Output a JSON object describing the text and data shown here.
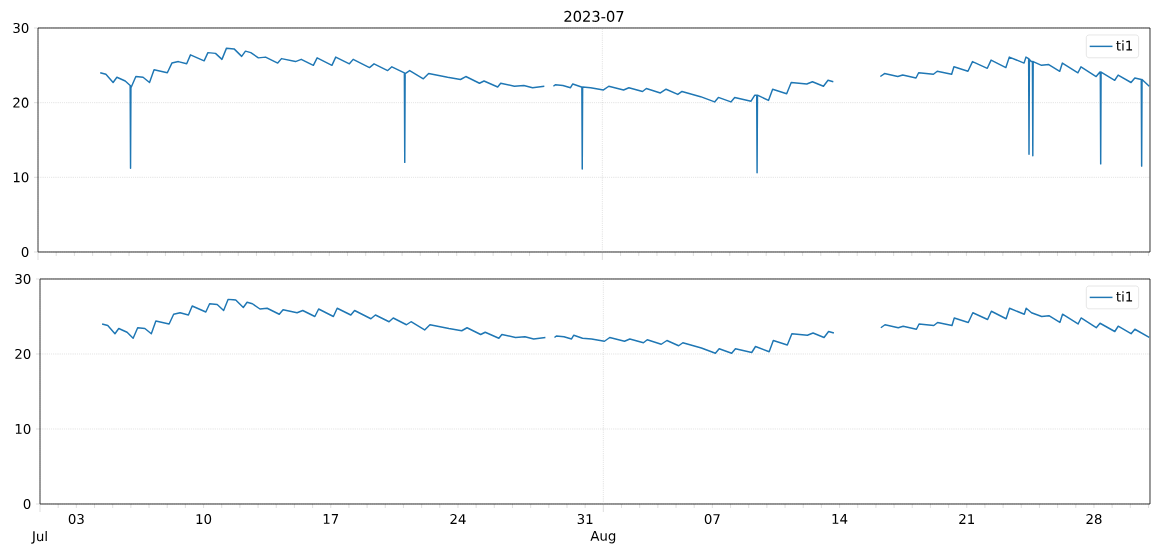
{
  "chart_data": [
    {
      "type": "line",
      "title": "2023-07",
      "xlim": [
        "2023-07-01",
        "2023-08-31T02:00"
      ],
      "ylim": [
        0,
        30
      ],
      "yticks": [
        0,
        10,
        20,
        30
      ],
      "grid": true,
      "legend": "top right",
      "tick_labels": "y",
      "xticks": [
        {
          "value": "2023-07-01",
          "label": null
        },
        {
          "value": "2023-07-02",
          "label": null
        },
        {
          "value": "2023-07-03",
          "label": null
        },
        {
          "value": "2023-07-04",
          "label": null
        },
        {
          "value": "2023-07-05",
          "label": null
        },
        {
          "value": "2023-07-06",
          "label": null
        },
        {
          "value": "2023-07-07",
          "label": null
        },
        {
          "value": "2023-07-08",
          "label": null
        },
        {
          "value": "2023-07-09",
          "label": null
        },
        {
          "value": "2023-07-10",
          "label": null
        },
        {
          "value": "2023-07-11",
          "label": null
        },
        {
          "value": "2023-07-12",
          "label": null
        },
        {
          "value": "2023-07-13",
          "label": null
        },
        {
          "value": "2023-07-14",
          "label": null
        },
        {
          "value": "2023-07-15",
          "label": null
        },
        {
          "value": "2023-07-16",
          "label": null
        },
        {
          "value": "2023-07-17",
          "label": null
        },
        {
          "value": "2023-07-18",
          "label": null
        },
        {
          "value": "2023-07-19",
          "label": null
        },
        {
          "value": "2023-07-20",
          "label": null
        },
        {
          "value": "2023-07-21",
          "label": null
        },
        {
          "value": "2023-07-22",
          "label": null
        },
        {
          "value": "2023-07-23",
          "label": null
        },
        {
          "value": "2023-07-24",
          "label": null
        },
        {
          "value": "2023-07-25",
          "label": null
        },
        {
          "value": "2023-07-26",
          "label": null
        },
        {
          "value": "2023-07-27",
          "label": null
        },
        {
          "value": "2023-07-28",
          "label": null
        },
        {
          "value": "2023-07-29",
          "label": null
        },
        {
          "value": "2023-07-30",
          "label": null
        },
        {
          "value": "2023-07-31",
          "label": null
        },
        {
          "value": "2023-08-01",
          "label": null
        },
        {
          "value": "2023-08-02",
          "label": null
        },
        {
          "value": "2023-08-03",
          "label": null
        },
        {
          "value": "2023-08-04",
          "label": null
        },
        {
          "value": "2023-08-05",
          "label": null
        },
        {
          "value": "2023-08-06",
          "label": null
        },
        {
          "value": "2023-08-07",
          "label": null
        },
        {
          "value": "2023-08-08",
          "label": null
        },
        {
          "value": "2023-08-09",
          "label": null
        },
        {
          "value": "2023-08-10",
          "label": null
        },
        {
          "value": "2023-08-11",
          "label": null
        },
        {
          "value": "2023-08-12",
          "label": null
        },
        {
          "value": "2023-08-13",
          "label": null
        },
        {
          "value": "2023-08-14",
          "label": null
        },
        {
          "value": "2023-08-15",
          "label": null
        },
        {
          "value": "2023-08-16",
          "label": null
        },
        {
          "value": "2023-08-17",
          "label": null
        },
        {
          "value": "2023-08-18",
          "label": null
        },
        {
          "value": "2023-08-19",
          "label": null
        },
        {
          "value": "2023-08-20",
          "label": null
        },
        {
          "value": "2023-08-21",
          "label": null
        },
        {
          "value": "2023-08-22",
          "label": null
        },
        {
          "value": "2023-08-23",
          "label": null
        },
        {
          "value": "2023-08-24",
          "label": null
        },
        {
          "value": "2023-08-25",
          "label": null
        },
        {
          "value": "2023-08-26",
          "label": null
        },
        {
          "value": "2023-08-27",
          "label": null
        },
        {
          "value": "2023-08-28",
          "label": null
        },
        {
          "value": "2023-08-29",
          "label": null
        },
        {
          "value": "2023-08-30",
          "label": null
        },
        {
          "value": "2023-08-31",
          "label": null
        }
      ],
      "x": [
        "2023-07-04T10:00",
        "2023-07-04T17:30",
        "2023-07-05T03:00",
        "2023-07-05T08:00",
        "2023-07-05T19:00",
        "2023-07-06T01:30",
        "2023-07-06T02:00",
        "2023-07-06T02:30",
        "2023-07-06T03:00",
        "2023-07-06T09:00",
        "2023-07-06T18:30",
        "2023-07-07T03:00",
        "2023-07-07T09:00",
        "2023-07-08T02:30",
        "2023-07-08T08:30",
        "2023-07-08T17:00",
        "2023-07-09T04:00",
        "2023-07-09T09:00",
        "2023-07-10T03:00",
        "2023-07-10T08:00",
        "2023-07-10T18:00",
        "2023-07-11T02:30",
        "2023-07-11T08:30",
        "2023-07-11T18:30",
        "2023-07-12T04:30",
        "2023-07-12T09:30",
        "2023-07-12T16:30",
        "2023-07-13T02:30",
        "2023-07-13T12:00",
        "2023-07-14T04:00",
        "2023-07-14T09:00",
        "2023-07-15T03:30",
        "2023-07-15T11:00",
        "2023-07-16T03:00",
        "2023-07-16T08:00",
        "2023-07-17T03:30",
        "2023-07-17T08:30",
        "2023-07-18T02:30",
        "2023-07-18T07:30",
        "2023-07-19T05:00",
        "2023-07-19T11:00",
        "2023-07-20T05:00",
        "2023-07-20T10:30",
        "2023-07-21T03:00",
        "2023-07-21T03:30",
        "2023-07-21T04:00",
        "2023-07-21T10:00",
        "2023-07-22T04:00",
        "2023-07-22T11:00",
        "2023-07-23T12:00",
        "2023-07-24T05:00",
        "2023-07-24T12:00",
        "2023-07-25T06:00",
        "2023-07-25T12:00",
        "2023-07-26T06:00",
        "2023-07-26T10:00",
        "2023-07-27T04:00",
        "2023-07-27T16:30",
        "2023-07-28T04:00",
        "2023-07-28T19:30",
        "2023-07-29T00:00",
        "2023-07-29T07:30",
        "2023-07-29T10:00",
        "2023-07-29T20:00",
        "2023-07-30T06:00",
        "2023-07-30T09:00",
        "2023-07-30T20:30",
        "2023-07-30T21:00",
        "2023-07-30T21:30",
        "2023-07-30T22:00",
        "2023-07-31T08:30",
        "2023-08-01T01:30",
        "2023-08-01T08:30",
        "2023-08-02T04:00",
        "2023-08-02T11:00",
        "2023-08-03T05:00",
        "2023-08-03T10:00",
        "2023-08-04T04:30",
        "2023-08-04T12:00",
        "2023-08-05T03:30",
        "2023-08-05T09:00",
        "2023-08-06T09:30",
        "2023-08-07T04:00",
        "2023-08-07T09:00",
        "2023-08-08T01:30",
        "2023-08-08T06:30",
        "2023-08-09T04:00",
        "2023-08-09T09:00",
        "2023-08-09T11:30",
        "2023-08-09T12:00",
        "2023-08-09T12:30",
        "2023-08-10T03:00",
        "2023-08-10T08:30",
        "2023-08-11T03:00",
        "2023-08-11T09:00",
        "2023-08-12T05:30",
        "2023-08-12T13:00",
        "2023-08-13T03:30",
        "2023-08-13T09:30",
        "2023-08-13T16:30",
        "2023-08-15T00:00",
        "2023-08-16T06:30",
        "2023-08-16T12:00",
        "2023-08-17T05:30",
        "2023-08-17T12:00",
        "2023-08-18T05:30",
        "2023-08-18T09:00",
        "2023-08-19T04:30",
        "2023-08-19T09:30",
        "2023-08-20T04:30",
        "2023-08-20T07:30",
        "2023-08-21T02:00",
        "2023-08-21T08:00",
        "2023-08-22T03:30",
        "2023-08-22T08:30",
        "2023-08-23T04:00",
        "2023-08-23T08:30",
        "2023-08-24T04:00",
        "2023-08-24T06:30",
        "2023-08-24T10:00",
        "2023-08-24T10:30",
        "2023-08-24T11:00",
        "2023-08-24T13:30",
        "2023-08-24T15:00",
        "2023-08-24T15:30",
        "2023-08-24T16:00",
        "2023-08-25T03:00",
        "2023-08-25T12:30",
        "2023-08-26T03:00",
        "2023-08-26T06:30",
        "2023-08-27T03:00",
        "2023-08-27T07:00",
        "2023-08-28T03:00",
        "2023-08-28T08:00",
        "2023-08-28T08:30",
        "2023-08-28T09:00",
        "2023-08-28T09:30",
        "2023-08-29T03:30",
        "2023-08-29T08:00",
        "2023-08-30T01:00",
        "2023-08-30T06:00",
        "2023-08-30T14:30",
        "2023-08-30T15:00",
        "2023-08-30T15:30",
        "2023-08-31T01:00"
      ],
      "series": [
        {
          "name": "ti1",
          "color": "#1f77b4",
          "values": [
            24.0,
            23.8,
            22.7,
            23.4,
            22.9,
            22.3,
            11.2,
            22.2,
            22.1,
            23.5,
            23.4,
            22.7,
            24.4,
            24.0,
            25.3,
            25.5,
            25.2,
            26.4,
            25.6,
            26.7,
            26.6,
            25.8,
            27.3,
            27.2,
            26.2,
            26.9,
            26.7,
            26.0,
            26.1,
            25.3,
            25.9,
            25.5,
            25.8,
            25.0,
            26.0,
            25.0,
            26.1,
            25.2,
            25.8,
            24.7,
            25.2,
            24.3,
            24.8,
            24.0,
            12.0,
            23.9,
            24.3,
            23.2,
            23.9,
            23.4,
            23.1,
            23.5,
            22.6,
            22.9,
            22.1,
            22.6,
            22.2,
            22.3,
            22.0,
            22.2,
            null,
            22.2,
            22.4,
            22.3,
            22.0,
            22.5,
            22.1,
            22.1,
            11.1,
            22.1,
            22.0,
            21.7,
            22.2,
            21.7,
            22.0,
            21.5,
            21.9,
            21.3,
            21.8,
            21.1,
            21.5,
            20.8,
            20.1,
            20.7,
            20.1,
            20.7,
            20.2,
            21.0,
            21.0,
            10.6,
            21.0,
            20.3,
            21.8,
            21.2,
            22.7,
            22.5,
            22.8,
            22.2,
            23.0,
            22.8,
            null,
            23.5,
            23.9,
            23.5,
            23.7,
            23.3,
            24.0,
            23.8,
            24.2,
            23.8,
            24.8,
            24.2,
            25.5,
            24.6,
            25.7,
            24.7,
            26.1,
            25.3,
            26.1,
            25.9,
            13.1,
            25.8,
            25.5,
            25.5,
            12.9,
            25.5,
            25.0,
            25.1,
            24.2,
            25.3,
            24.0,
            24.8,
            23.5,
            24.1,
            24.1,
            11.8,
            24.1,
            23.0,
            23.7,
            22.7,
            23.3,
            23.1,
            11.5,
            23.1,
            22.2
          ]
        }
      ]
    },
    {
      "type": "line",
      "xlim": [
        "2023-07-01",
        "2023-08-31T02:00"
      ],
      "ylim": [
        0,
        30
      ],
      "yticks": [
        0,
        10,
        20,
        30
      ],
      "grid": true,
      "legend": "top right",
      "annotations": [
        "Jul",
        "Aug"
      ],
      "xticks": [
        {
          "value": "2023-07-01",
          "label": null
        },
        {
          "value": "2023-07-02",
          "label": null
        },
        {
          "value": "2023-07-03",
          "label": "03"
        },
        {
          "value": "2023-07-04",
          "label": null
        },
        {
          "value": "2023-07-05",
          "label": null
        },
        {
          "value": "2023-07-06",
          "label": null
        },
        {
          "value": "2023-07-07",
          "label": null
        },
        {
          "value": "2023-07-08",
          "label": null
        },
        {
          "value": "2023-07-09",
          "label": null
        },
        {
          "value": "2023-07-10",
          "label": "10"
        },
        {
          "value": "2023-07-11",
          "label": null
        },
        {
          "value": "2023-07-12",
          "label": null
        },
        {
          "value": "2023-07-13",
          "label": null
        },
        {
          "value": "2023-07-14",
          "label": null
        },
        {
          "value": "2023-07-15",
          "label": null
        },
        {
          "value": "2023-07-16",
          "label": null
        },
        {
          "value": "2023-07-17",
          "label": "17"
        },
        {
          "value": "2023-07-18",
          "label": null
        },
        {
          "value": "2023-07-19",
          "label": null
        },
        {
          "value": "2023-07-20",
          "label": null
        },
        {
          "value": "2023-07-21",
          "label": null
        },
        {
          "value": "2023-07-22",
          "label": null
        },
        {
          "value": "2023-07-23",
          "label": null
        },
        {
          "value": "2023-07-24",
          "label": "24"
        },
        {
          "value": "2023-07-25",
          "label": null
        },
        {
          "value": "2023-07-26",
          "label": null
        },
        {
          "value": "2023-07-27",
          "label": null
        },
        {
          "value": "2023-07-28",
          "label": null
        },
        {
          "value": "2023-07-29",
          "label": null
        },
        {
          "value": "2023-07-30",
          "label": null
        },
        {
          "value": "2023-07-31",
          "label": "31"
        },
        {
          "value": "2023-08-01",
          "label": null
        },
        {
          "value": "2023-08-02",
          "label": null
        },
        {
          "value": "2023-08-03",
          "label": null
        },
        {
          "value": "2023-08-04",
          "label": null
        },
        {
          "value": "2023-08-05",
          "label": null
        },
        {
          "value": "2023-08-06",
          "label": null
        },
        {
          "value": "2023-08-07",
          "label": "07"
        },
        {
          "value": "2023-08-08",
          "label": null
        },
        {
          "value": "2023-08-09",
          "label": null
        },
        {
          "value": "2023-08-10",
          "label": null
        },
        {
          "value": "2023-08-11",
          "label": null
        },
        {
          "value": "2023-08-12",
          "label": null
        },
        {
          "value": "2023-08-13",
          "label": null
        },
        {
          "value": "2023-08-14",
          "label": "14"
        },
        {
          "value": "2023-08-15",
          "label": null
        },
        {
          "value": "2023-08-16",
          "label": null
        },
        {
          "value": "2023-08-17",
          "label": null
        },
        {
          "value": "2023-08-18",
          "label": null
        },
        {
          "value": "2023-08-19",
          "label": null
        },
        {
          "value": "2023-08-20",
          "label": null
        },
        {
          "value": "2023-08-21",
          "label": "21"
        },
        {
          "value": "2023-08-22",
          "label": null
        },
        {
          "value": "2023-08-23",
          "label": null
        },
        {
          "value": "2023-08-24",
          "label": null
        },
        {
          "value": "2023-08-25",
          "label": null
        },
        {
          "value": "2023-08-26",
          "label": null
        },
        {
          "value": "2023-08-27",
          "label": null
        },
        {
          "value": "2023-08-28",
          "label": "28"
        },
        {
          "value": "2023-08-29",
          "label": null
        },
        {
          "value": "2023-08-30",
          "label": null
        },
        {
          "value": "2023-08-31",
          "label": null
        }
      ],
      "x": [
        "2023-07-04T10:00",
        "2023-07-04T17:30",
        "2023-07-05T03:00",
        "2023-07-05T08:00",
        "2023-07-05T19:00",
        "2023-07-06T03:00",
        "2023-07-06T09:00",
        "2023-07-06T18:30",
        "2023-07-07T03:00",
        "2023-07-07T09:00",
        "2023-07-08T02:30",
        "2023-07-08T08:30",
        "2023-07-08T17:00",
        "2023-07-09T04:00",
        "2023-07-09T09:00",
        "2023-07-10T03:00",
        "2023-07-10T08:00",
        "2023-07-10T18:00",
        "2023-07-11T02:30",
        "2023-07-11T08:30",
        "2023-07-11T18:30",
        "2023-07-12T04:30",
        "2023-07-12T09:30",
        "2023-07-12T16:30",
        "2023-07-13T02:30",
        "2023-07-13T12:00",
        "2023-07-14T04:00",
        "2023-07-14T09:00",
        "2023-07-15T03:30",
        "2023-07-15T11:00",
        "2023-07-16T03:00",
        "2023-07-16T08:00",
        "2023-07-17T03:30",
        "2023-07-17T08:30",
        "2023-07-18T02:30",
        "2023-07-18T07:30",
        "2023-07-19T05:00",
        "2023-07-19T11:00",
        "2023-07-20T05:00",
        "2023-07-20T10:30",
        "2023-07-21T04:00",
        "2023-07-21T10:00",
        "2023-07-22T04:00",
        "2023-07-22T11:00",
        "2023-07-23T12:00",
        "2023-07-24T05:00",
        "2023-07-24T12:00",
        "2023-07-25T06:00",
        "2023-07-25T12:00",
        "2023-07-26T06:00",
        "2023-07-26T10:00",
        "2023-07-27T04:00",
        "2023-07-27T16:30",
        "2023-07-28T04:00",
        "2023-07-28T19:30",
        "2023-07-29T00:00",
        "2023-07-29T07:30",
        "2023-07-29T10:00",
        "2023-07-29T20:00",
        "2023-07-30T06:00",
        "2023-07-30T09:00",
        "2023-07-30T20:30",
        "2023-07-31T08:30",
        "2023-08-01T01:30",
        "2023-08-01T08:30",
        "2023-08-02T04:00",
        "2023-08-02T11:00",
        "2023-08-03T05:00",
        "2023-08-03T10:00",
        "2023-08-04T04:30",
        "2023-08-04T12:00",
        "2023-08-05T03:30",
        "2023-08-05T09:00",
        "2023-08-06T09:30",
        "2023-08-07T04:00",
        "2023-08-07T09:00",
        "2023-08-08T01:30",
        "2023-08-08T06:30",
        "2023-08-09T04:00",
        "2023-08-09T09:00",
        "2023-08-10T03:00",
        "2023-08-10T08:30",
        "2023-08-11T03:00",
        "2023-08-11T09:00",
        "2023-08-12T05:30",
        "2023-08-12T13:00",
        "2023-08-13T03:30",
        "2023-08-13T09:30",
        "2023-08-13T16:30",
        "2023-08-15T00:00",
        "2023-08-16T06:30",
        "2023-08-16T12:00",
        "2023-08-17T05:30",
        "2023-08-17T12:00",
        "2023-08-18T05:30",
        "2023-08-18T09:00",
        "2023-08-19T04:30",
        "2023-08-19T09:30",
        "2023-08-20T04:30",
        "2023-08-20T07:30",
        "2023-08-21T02:00",
        "2023-08-21T08:00",
        "2023-08-22T03:30",
        "2023-08-22T08:30",
        "2023-08-23T04:00",
        "2023-08-23T08:30",
        "2023-08-24T04:00",
        "2023-08-24T06:30",
        "2023-08-24T13:30",
        "2023-08-25T03:00",
        "2023-08-25T12:30",
        "2023-08-26T03:00",
        "2023-08-26T06:30",
        "2023-08-27T03:00",
        "2023-08-27T07:00",
        "2023-08-28T03:00",
        "2023-08-28T08:00",
        "2023-08-29T03:30",
        "2023-08-29T08:00",
        "2023-08-30T01:00",
        "2023-08-30T06:00",
        "2023-08-31T01:00"
      ],
      "series": [
        {
          "name": "ti1",
          "color": "#1f77b4",
          "values": [
            24.0,
            23.8,
            22.7,
            23.4,
            22.9,
            22.1,
            23.5,
            23.4,
            22.7,
            24.4,
            24.0,
            25.3,
            25.5,
            25.2,
            26.4,
            25.6,
            26.7,
            26.6,
            25.8,
            27.3,
            27.2,
            26.2,
            26.9,
            26.7,
            26.0,
            26.1,
            25.3,
            25.9,
            25.5,
            25.8,
            25.0,
            26.0,
            25.0,
            26.1,
            25.2,
            25.8,
            24.7,
            25.2,
            24.3,
            24.8,
            23.9,
            24.3,
            23.2,
            23.9,
            23.4,
            23.1,
            23.5,
            22.6,
            22.9,
            22.1,
            22.6,
            22.2,
            22.3,
            22.0,
            22.2,
            null,
            22.2,
            22.4,
            22.3,
            22.0,
            22.5,
            22.1,
            22.0,
            21.7,
            22.2,
            21.7,
            22.0,
            21.5,
            21.9,
            21.3,
            21.8,
            21.1,
            21.5,
            20.8,
            20.1,
            20.7,
            20.1,
            20.7,
            20.2,
            21.0,
            20.3,
            21.8,
            21.2,
            22.7,
            22.5,
            22.8,
            22.2,
            23.0,
            22.8,
            null,
            23.5,
            23.9,
            23.5,
            23.7,
            23.3,
            24.0,
            23.8,
            24.2,
            23.8,
            24.8,
            24.2,
            25.5,
            24.6,
            25.7,
            24.7,
            26.1,
            25.3,
            26.1,
            25.5,
            25.0,
            25.1,
            24.2,
            25.3,
            24.0,
            24.8,
            23.5,
            24.1,
            23.0,
            23.7,
            22.7,
            23.3,
            22.2
          ]
        }
      ]
    }
  ]
}
